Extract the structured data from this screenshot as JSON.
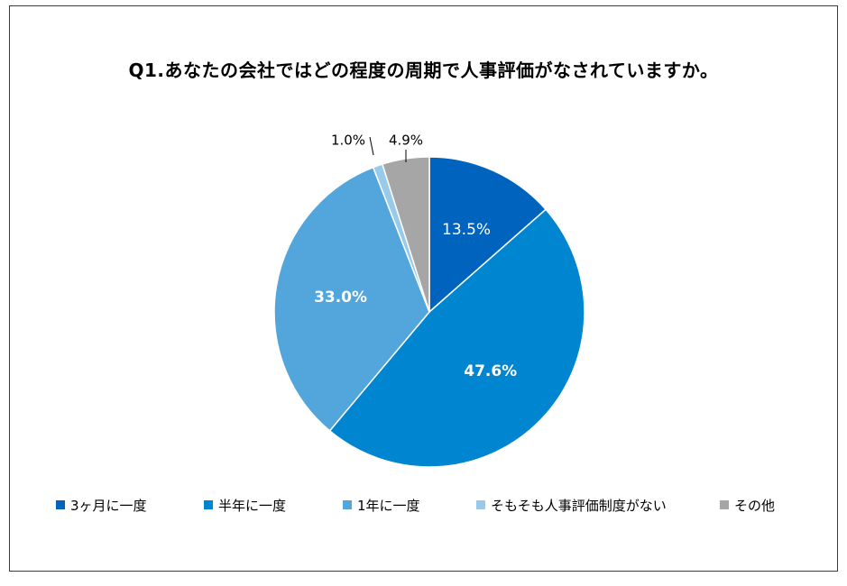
{
  "chart_data": {
    "type": "pie",
    "title": "Q1.あなたの会社ではどの程度の周期で人事評価がなされていますか。",
    "slices": [
      {
        "label": "3ヶ月に一度",
        "value": 13.5,
        "display": "13.5%",
        "color": "#0064BE"
      },
      {
        "label": "半年に一度",
        "value": 47.6,
        "display": "47.6%",
        "color": "#0085D1"
      },
      {
        "label": "1年に一度",
        "value": 33.0,
        "display": "33.0%",
        "color": "#52A6DC"
      },
      {
        "label": "そもそも人事評価制度がない",
        "value": 1.0,
        "display": "1.0%",
        "color": "#99CAEA"
      },
      {
        "label": "その他",
        "value": 4.9,
        "display": "4.9%",
        "color": "#A6A6A6"
      }
    ],
    "legend_position": "bottom",
    "start_angle": "12 o'clock",
    "direction": "clockwise"
  }
}
